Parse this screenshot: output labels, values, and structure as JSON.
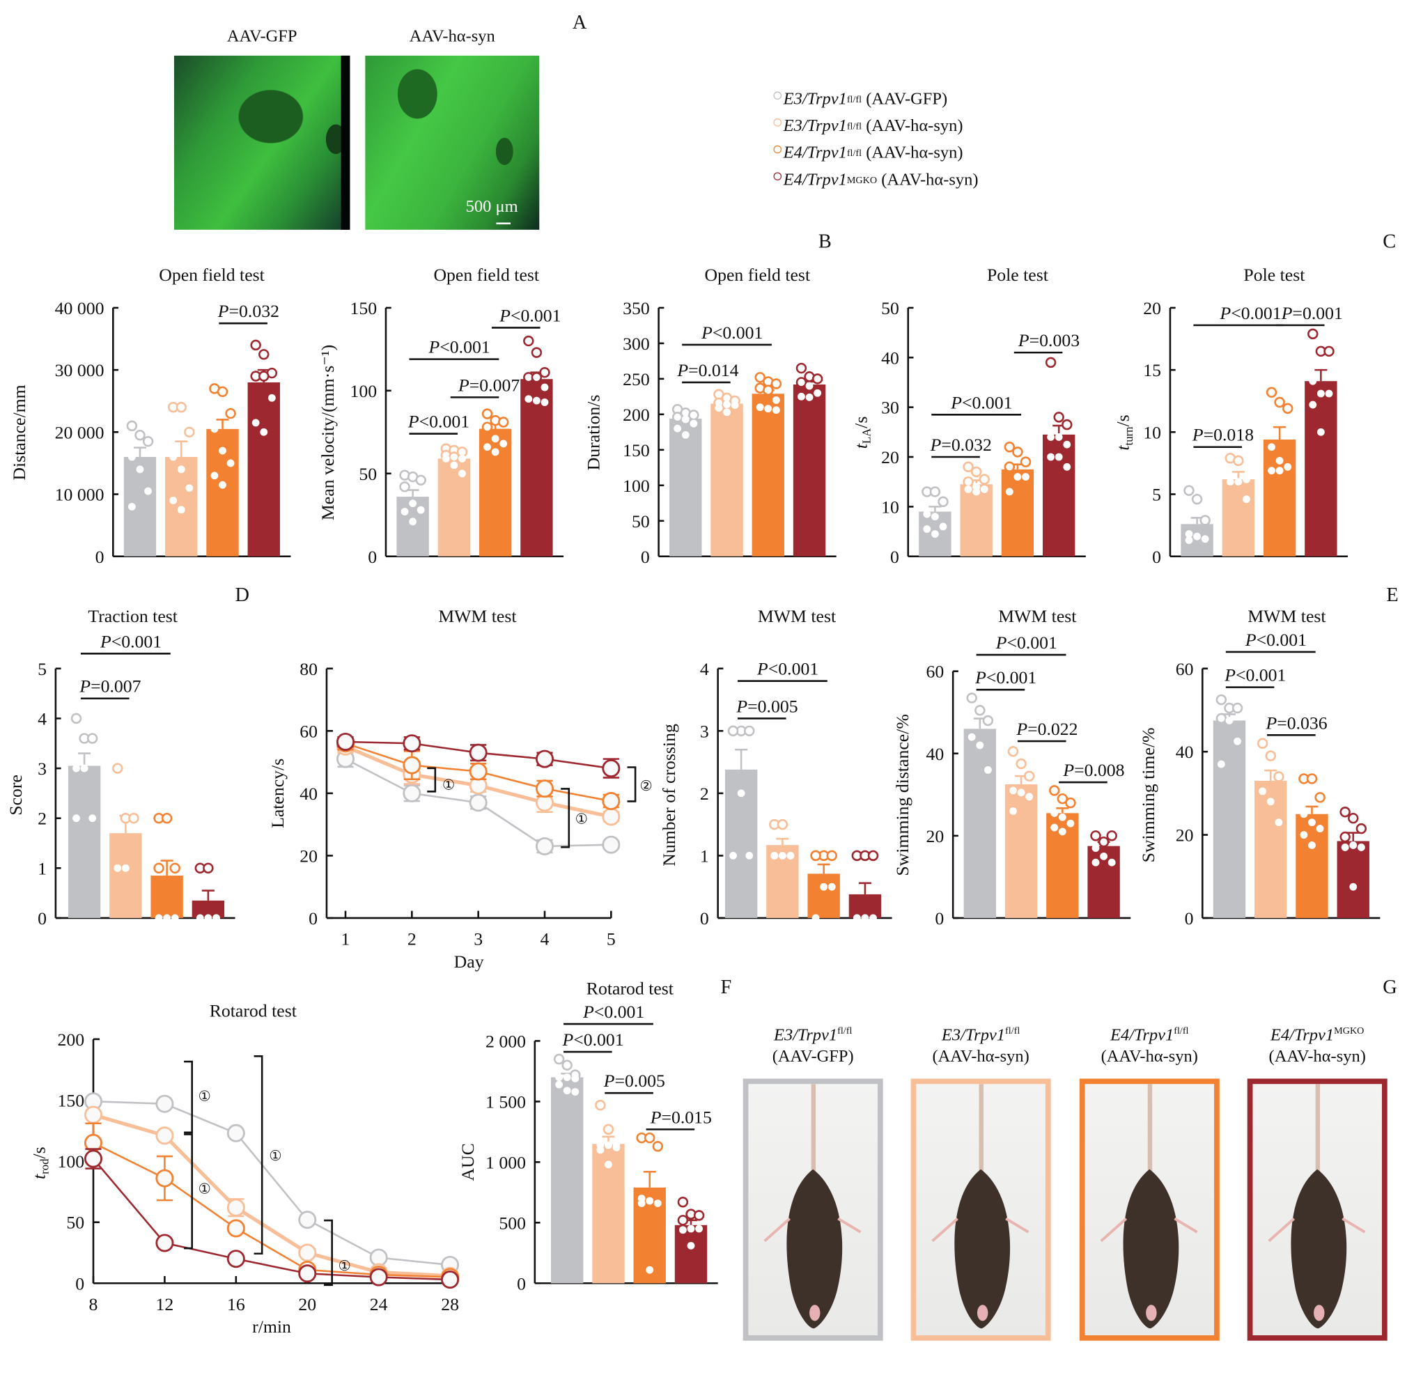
{
  "colors": {
    "g1": "#c0c1c4",
    "g2": "#f8be97",
    "g3": "#f28232",
    "g4": "#9e2830"
  },
  "panel_letters": [
    "A",
    "B",
    "C",
    "D",
    "E",
    "F",
    "G"
  ],
  "panelA": {
    "labels": [
      "AAV-GFP",
      "AAV-hα-syn"
    ],
    "scale_bar": "500 μm"
  },
  "legend": [
    {
      "gene": "E3/Trpv1",
      "sup": "fl/fl",
      "vector": "(AAV-GFP)",
      "color": "g1"
    },
    {
      "gene": "E3/Trpv1",
      "sup": "fl/fl",
      "vector": "(AAV-hα-syn)",
      "color": "g2"
    },
    {
      "gene": "E4/Trpv1",
      "sup": "fl/fl",
      "vector": "(AAV-hα-syn)",
      "color": "g3"
    },
    {
      "gene": "E4/Trpv1",
      "sup": "MGKO",
      "vector": "(AAV-hα-syn)",
      "color": "g4"
    }
  ],
  "mouse_captions": [
    {
      "gene": "E3/Trpv1",
      "sup": "fl/fl",
      "vector": "(AAV-GFP)"
    },
    {
      "gene": "E3/Trpv1",
      "sup": "fl/fl",
      "vector": "(AAV-hα-syn)"
    },
    {
      "gene": "E4/Trpv1",
      "sup": "fl/fl",
      "vector": "(AAV-hα-syn)"
    },
    {
      "gene": "E4/Trpv1",
      "sup": "MGKO",
      "vector": "(AAV-hα-syn)"
    }
  ],
  "chart_data": [
    {
      "id": "dist",
      "type": "bar",
      "title": "Open field test",
      "ylabel": "Distance/mm",
      "ylim": [
        0,
        40000
      ],
      "ticks": [
        0,
        10000,
        20000,
        30000,
        40000
      ],
      "tick_labels": [
        "0",
        "10 000",
        "20 000",
        "30 000",
        "40 000"
      ],
      "values": [
        16000,
        16000,
        20500,
        28000
      ],
      "sem": [
        1500,
        2500,
        1500,
        2000
      ],
      "points": [
        [
          21000,
          19500,
          18500,
          16000,
          14000,
          10500,
          8000
        ],
        [
          24000,
          24000,
          20000,
          16000,
          14000,
          11000,
          9000,
          7500
        ],
        [
          27000,
          26500,
          23000,
          20500,
          17000,
          15000,
          13000,
          11500
        ],
        [
          34000,
          32500,
          29500,
          29000,
          29000,
          25500,
          21500,
          20000
        ]
      ],
      "sig": [
        {
          "text": "P=0.032",
          "from": 2,
          "to": 3,
          "y": 37500
        }
      ]
    },
    {
      "id": "vel",
      "type": "bar",
      "title": "Open field test",
      "ylabel": "Mean velocity/(mm·s⁻¹)",
      "ylim": [
        0,
        150
      ],
      "ticks": [
        0,
        50,
        100,
        150
      ],
      "tick_labels": [
        "0",
        "50",
        "100",
        "150"
      ],
      "values": [
        36,
        59,
        77,
        107
      ],
      "sem": [
        4,
        2,
        3,
        4
      ],
      "points": [
        [
          49,
          48,
          46,
          42,
          32,
          28,
          27,
          21
        ],
        [
          65,
          64,
          63,
          61,
          60,
          59,
          59,
          55,
          50
        ],
        [
          86,
          82,
          81,
          78,
          71,
          68,
          66,
          63
        ],
        [
          130,
          123,
          111,
          108,
          108,
          102,
          95,
          94,
          93
        ]
      ],
      "sig": [
        {
          "text": "P<0.001",
          "from": 0,
          "to": 1,
          "y": 74
        },
        {
          "text": "P=0.007",
          "from": 1,
          "to": 2,
          "y": 96
        },
        {
          "text": "P<0.001",
          "from": 0,
          "to": 2,
          "y": 119
        },
        {
          "text": "P<0.001",
          "from": 2,
          "to": 3,
          "y": 138
        }
      ]
    },
    {
      "id": "dur",
      "type": "bar",
      "title": "Open field test",
      "ylabel": "Duration/s",
      "ylim": [
        0,
        350
      ],
      "ticks": [
        0,
        50,
        100,
        150,
        200,
        250,
        300,
        350
      ],
      "tick_labels": [
        "0",
        "50",
        "100",
        "150",
        "200",
        "250",
        "300",
        "350"
      ],
      "values": [
        194,
        215,
        229,
        242
      ],
      "sem": [
        4,
        4,
        5,
        4
      ],
      "points": [
        [
          207,
          202,
          199,
          196,
          193,
          187,
          180,
          171
        ],
        [
          228,
          223,
          219,
          216,
          214,
          213,
          209,
          203
        ],
        [
          252,
          246,
          243,
          237,
          234,
          220,
          210,
          208,
          206
        ],
        [
          265,
          253,
          250,
          245,
          240,
          230,
          225,
          224
        ]
      ],
      "sig": [
        {
          "text": "P=0.014",
          "from": 0,
          "to": 1,
          "y": 245
        },
        {
          "text": "P<0.001",
          "from": 0,
          "to": 2,
          "y": 298
        }
      ]
    },
    {
      "id": "tla",
      "type": "bar",
      "title": "Pole test",
      "ylabel": "tLA/s",
      "ylim": [
        0,
        50
      ],
      "ticks": [
        0,
        10,
        20,
        30,
        40,
        50
      ],
      "tick_labels": [
        "0",
        "10",
        "20",
        "30",
        "40",
        "50"
      ],
      "values": [
        9,
        14.5,
        17.5,
        24.5
      ],
      "sem": [
        1,
        0.8,
        1,
        1.8
      ],
      "points": [
        [
          13,
          13,
          11,
          8.5,
          8,
          6,
          5.5,
          4.5
        ],
        [
          18,
          17,
          15.5,
          15,
          14,
          13.5,
          13.5,
          13
        ],
        [
          22,
          21,
          19,
          18,
          16,
          16,
          13
        ],
        [
          39,
          28,
          26.5,
          24,
          24,
          22.5,
          20,
          20,
          18
        ]
      ],
      "sig": [
        {
          "text": "P=0.032",
          "from": 0,
          "to": 1,
          "y": 20
        },
        {
          "text": "P<0.001",
          "from": 0,
          "to": 2,
          "y": 28.5
        },
        {
          "text": "P=0.003",
          "from": 2,
          "to": 3,
          "y": 41
        }
      ]
    },
    {
      "id": "tturn",
      "type": "bar",
      "title": "Pole test",
      "ylabel": "tturn/s",
      "ylim": [
        0,
        20
      ],
      "ticks": [
        0,
        5,
        10,
        15,
        20
      ],
      "tick_labels": [
        "0",
        "5",
        "10",
        "15",
        "20"
      ],
      "values": [
        2.6,
        6.2,
        9.4,
        14.1
      ],
      "sem": [
        0.5,
        0.6,
        1,
        0.9
      ],
      "points": [
        [
          5.3,
          4.6,
          2.9,
          1.8,
          1.6,
          1.4,
          1.3
        ],
        [
          7.9,
          7.7,
          6.2,
          6.0,
          6.0,
          4.6
        ],
        [
          13.2,
          12.4,
          11.9,
          8.8,
          7.7,
          7.2,
          6.9,
          6.9
        ],
        [
          17.9,
          16.5,
          16.5,
          14.1,
          13.1,
          13.1,
          12.2,
          10.0
        ]
      ],
      "sig": [
        {
          "text": "P=0.018",
          "from": 0,
          "to": 1,
          "y": 8.8
        },
        {
          "text": "P<0.001",
          "from": 0,
          "to": 2,
          "y": 18.6
        },
        {
          "text": "P=0.001",
          "from": 2,
          "to": 3,
          "y": 18.6
        }
      ]
    },
    {
      "id": "trac",
      "type": "bar",
      "title": "Traction test",
      "ylabel": "Score",
      "ylim": [
        0,
        5
      ],
      "ticks": [
        0,
        1,
        2,
        3,
        4,
        5
      ],
      "tick_labels": [
        "0",
        "1",
        "2",
        "3",
        "4",
        "5"
      ],
      "values": [
        3.05,
        1.7,
        0.85,
        0.35
      ],
      "sem": [
        0.25,
        0.35,
        0.3,
        0.2
      ],
      "points": [
        [
          4,
          3.6,
          3.6,
          3,
          3,
          2,
          2
        ],
        [
          3,
          2,
          2,
          1,
          1
        ],
        [
          2,
          2,
          1,
          1,
          0,
          0,
          0
        ],
        [
          1,
          1,
          0,
          0,
          0,
          0
        ]
      ],
      "sig": [
        {
          "text": "P=0.007",
          "from": 0,
          "to": 1,
          "y": 4.4
        },
        {
          "text": "P<0.001",
          "from": 0,
          "to": 2,
          "y": 5.3
        }
      ]
    },
    {
      "id": "mwm",
      "type": "line",
      "title": "MWM test",
      "xlabel": "Day",
      "ylabel": "Latency/s",
      "x": [
        1,
        2,
        3,
        4,
        5
      ],
      "ylim": [
        0,
        80
      ],
      "ticks": [
        0,
        20,
        40,
        60,
        80
      ],
      "xticks": [
        "1",
        "2",
        "3",
        "4",
        "5"
      ],
      "series": [
        {
          "name": "E3/Trpv1 fl/fl (AAV-GFP)",
          "color": "g1",
          "values": [
            51,
            40,
            37,
            23,
            23.5
          ],
          "sem": [
            2.5,
            2.5,
            2,
            2,
            0
          ]
        },
        {
          "name": "E3/Trpv1 fl/fl (AAV-hα-syn)",
          "color": "g2",
          "values": [
            55,
            46,
            42.5,
            37,
            32.5
          ],
          "sem": [
            2,
            3,
            2,
            3,
            1.5
          ]
        },
        {
          "name": "E4/Trpv1 fl/fl (AAV-hα-syn)",
          "color": "g3",
          "values": [
            56,
            49,
            47,
            41.5,
            37.5
          ],
          "sem": [
            2,
            4.5,
            2.5,
            2.5,
            2
          ]
        },
        {
          "name": "E4/Trpv1 MGKO (AAV-hα-syn)",
          "color": "g4",
          "values": [
            56.5,
            56,
            53,
            51,
            48
          ],
          "sem": [
            1.5,
            2,
            2.5,
            2,
            3
          ]
        }
      ],
      "annotations": [
        "①",
        "①",
        "②"
      ]
    },
    {
      "id": "cross",
      "type": "bar",
      "title": "MWM test",
      "ylabel": "Number of crossing",
      "ylim": [
        0,
        4
      ],
      "ticks": [
        0,
        1,
        2,
        3,
        4
      ],
      "tick_labels": [
        "0",
        "1",
        "2",
        "3",
        "4"
      ],
      "values": [
        2.38,
        1.17,
        0.71,
        0.38
      ],
      "sem": [
        0.32,
        0.1,
        0.15,
        0.18
      ],
      "points": [
        [
          3,
          3,
          3,
          3,
          2,
          1,
          1
        ],
        [
          1.5,
          1.5,
          1,
          1,
          1,
          1,
          1
        ],
        [
          1,
          1,
          1,
          1,
          0.5,
          0.5,
          0
        ],
        [
          1,
          1,
          1,
          0,
          0,
          0,
          0,
          0
        ]
      ],
      "sig": [
        {
          "text": "P=0.005",
          "from": 0,
          "to": 1,
          "y": 3.2
        },
        {
          "text": "P<0.001",
          "from": 0,
          "to": 2,
          "y": 3.8
        }
      ]
    },
    {
      "id": "sdist",
      "type": "bar",
      "title": "MWM test",
      "ylabel": "Swimming distance/%",
      "ylim": [
        0,
        60
      ],
      "ticks": [
        0,
        20,
        40,
        60
      ],
      "tick_labels": [
        "0",
        "20",
        "40",
        "60"
      ],
      "values": [
        46,
        32.5,
        25.5,
        17.5
      ],
      "sem": [
        2.5,
        2,
        1.2,
        1
      ],
      "points": [
        [
          53.5,
          50.5,
          48,
          44,
          42,
          36
        ],
        [
          40.5,
          37.5,
          34.5,
          31,
          30.5,
          29.5,
          26
        ],
        [
          31,
          29,
          28,
          25.5,
          24.5,
          23,
          22,
          21
        ],
        [
          20,
          18.5,
          20,
          17,
          15,
          13.5,
          13.5
        ]
      ],
      "sig": [
        {
          "text": "P<0.001",
          "from": 0,
          "to": 1,
          "y": 55.5
        },
        {
          "text": "P=0.022",
          "from": 1,
          "to": 2,
          "y": 43
        },
        {
          "text": "P=0.008",
          "from": 2,
          "to": 3,
          "y": 33
        },
        {
          "text": "P<0.001",
          "from": 0,
          "to": 2,
          "y": 64
        }
      ]
    },
    {
      "id": "stime",
      "type": "bar",
      "title": "MWM test",
      "ylabel": "Swimming time/%",
      "ylim": [
        0,
        60
      ],
      "ticks": [
        0,
        20,
        40,
        60
      ],
      "tick_labels": [
        "0",
        "20",
        "40",
        "60"
      ],
      "values": [
        47.5,
        33,
        25,
        18.5
      ],
      "sem": [
        1.5,
        2.5,
        1.8,
        2
      ],
      "points": [
        [
          52.5,
          50.5,
          50.5,
          48,
          47.5,
          42.5,
          37
        ],
        [
          42,
          39,
          34,
          30.5,
          28,
          23
        ],
        [
          33.5,
          33.5,
          29,
          25,
          23,
          21.5,
          20,
          17.5
        ],
        [
          25.5,
          24,
          21.5,
          19.5,
          17.5,
          17,
          17,
          7.5
        ]
      ],
      "sig": [
        {
          "text": "P<0.001",
          "from": 0,
          "to": 1,
          "y": 55.5
        },
        {
          "text": "P=0.036",
          "from": 1,
          "to": 2,
          "y": 44
        },
        {
          "text": "P<0.001",
          "from": 0,
          "to": 2,
          "y": 64
        }
      ]
    },
    {
      "id": "rotline",
      "type": "line",
      "title": "Rotarod test",
      "xlabel": "r/min",
      "ylabel": "trod/s",
      "x": [
        8,
        12,
        16,
        20,
        24,
        28
      ],
      "ylim": [
        0,
        200
      ],
      "ticks": [
        0,
        50,
        100,
        150,
        200
      ],
      "xticks": [
        "8",
        "12",
        "16",
        "20",
        "24",
        "28"
      ],
      "series": [
        {
          "name": "E3/Trpv1 fl/fl (AAV-GFP)",
          "color": "g1",
          "values": [
            149,
            147,
            123,
            52,
            21,
            15
          ],
          "sem": [
            0,
            0,
            0,
            0,
            0,
            0
          ]
        },
        {
          "name": "E3/Trpv1 fl/fl (AAV-hα-syn)",
          "color": "g2",
          "values": [
            138,
            121,
            62,
            25,
            9,
            6
          ],
          "sem": [
            0,
            0,
            7,
            0,
            0,
            0
          ]
        },
        {
          "name": "E4/Trpv1 fl/fl (AAV-hα-syn)",
          "color": "g3",
          "values": [
            115,
            86,
            45,
            11,
            7,
            5
          ],
          "sem": [
            16,
            18,
            0,
            0,
            0,
            0
          ]
        },
        {
          "name": "E4/Trpv1 MGKO (AAV-hα-syn)",
          "color": "g4",
          "values": [
            102,
            33,
            20,
            8,
            5,
            3
          ],
          "sem": [
            8,
            0,
            0,
            0,
            0,
            0
          ]
        }
      ],
      "annotations": [
        "①",
        "①",
        "①",
        "①"
      ]
    },
    {
      "id": "auc",
      "type": "bar",
      "title": "Rotarod test",
      "ylabel": "AUC",
      "ylim": [
        0,
        2000
      ],
      "ticks": [
        0,
        500,
        1000,
        1500,
        2000
      ],
      "tick_labels": [
        "0",
        "500",
        "1 000",
        "1 500",
        "2 000"
      ],
      "values": [
        1700,
        1150,
        790,
        480
      ],
      "sem": [
        30,
        60,
        130,
        40
      ],
      "points": [
        [
          1850,
          1800,
          1720,
          1700,
          1700,
          1690,
          1640,
          1590,
          1580
        ],
        [
          1470,
          1270,
          1150,
          1140,
          1140,
          1120,
          1100,
          980
        ],
        [
          1200,
          1200,
          1130,
          700,
          680,
          660,
          660,
          110
        ],
        [
          670,
          570,
          560,
          520,
          450,
          450,
          440,
          310
        ]
      ],
      "sig": [
        {
          "text": "P<0.001",
          "from": 0,
          "to": 1,
          "y": 1910
        },
        {
          "text": "P<0.001",
          "from": 0,
          "to": 2,
          "y": 2140
        },
        {
          "text": "P=0.005",
          "from": 1,
          "to": 2,
          "y": 1570
        },
        {
          "text": "P=0.015",
          "from": 2,
          "to": 3,
          "y": 1270
        }
      ]
    }
  ]
}
